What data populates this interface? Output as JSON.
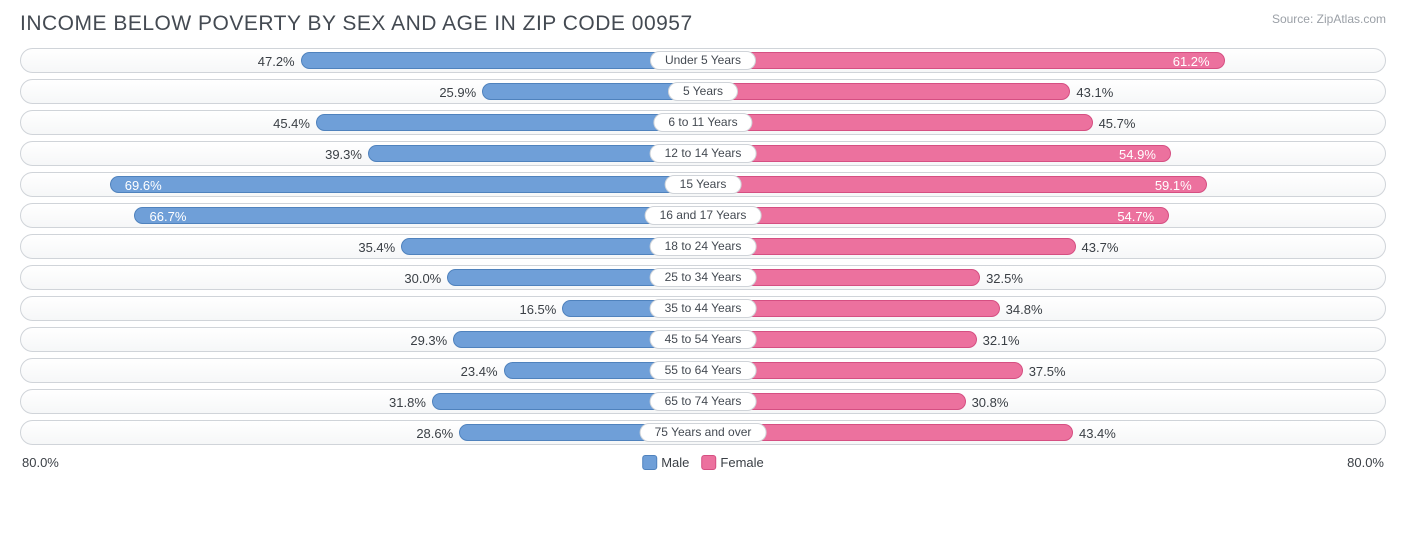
{
  "title": "INCOME BELOW POVERTY BY SEX AND AGE IN ZIP CODE 00957",
  "source": "Source: ZipAtlas.com",
  "axis_max_value": 80.0,
  "axis_max_label_left": "80.0%",
  "axis_max_label_right": "80.0%",
  "colors": {
    "male_fill": "#6f9fd8",
    "male_border": "#4f82bd",
    "female_fill": "#ec719e",
    "female_border": "#d54f82",
    "track_border": "#d0d4d9",
    "text": "#3a3f45",
    "title_text": "#444a52",
    "source_text": "#9ba0a7",
    "background": "#ffffff"
  },
  "legend": {
    "male": "Male",
    "female": "Female"
  },
  "label_inside_threshold": 50.0,
  "rows": [
    {
      "category": "Under 5 Years",
      "male": 47.2,
      "male_label": "47.2%",
      "female": 61.2,
      "female_label": "61.2%"
    },
    {
      "category": "5 Years",
      "male": 25.9,
      "male_label": "25.9%",
      "female": 43.1,
      "female_label": "43.1%"
    },
    {
      "category": "6 to 11 Years",
      "male": 45.4,
      "male_label": "45.4%",
      "female": 45.7,
      "female_label": "45.7%"
    },
    {
      "category": "12 to 14 Years",
      "male": 39.3,
      "male_label": "39.3%",
      "female": 54.9,
      "female_label": "54.9%"
    },
    {
      "category": "15 Years",
      "male": 69.6,
      "male_label": "69.6%",
      "female": 59.1,
      "female_label": "59.1%"
    },
    {
      "category": "16 and 17 Years",
      "male": 66.7,
      "male_label": "66.7%",
      "female": 54.7,
      "female_label": "54.7%"
    },
    {
      "category": "18 to 24 Years",
      "male": 35.4,
      "male_label": "35.4%",
      "female": 43.7,
      "female_label": "43.7%"
    },
    {
      "category": "25 to 34 Years",
      "male": 30.0,
      "male_label": "30.0%",
      "female": 32.5,
      "female_label": "32.5%"
    },
    {
      "category": "35 to 44 Years",
      "male": 16.5,
      "male_label": "16.5%",
      "female": 34.8,
      "female_label": "34.8%"
    },
    {
      "category": "45 to 54 Years",
      "male": 29.3,
      "male_label": "29.3%",
      "female": 32.1,
      "female_label": "32.1%"
    },
    {
      "category": "55 to 64 Years",
      "male": 23.4,
      "male_label": "23.4%",
      "female": 37.5,
      "female_label": "37.5%"
    },
    {
      "category": "65 to 74 Years",
      "male": 31.8,
      "male_label": "31.8%",
      "female": 30.8,
      "female_label": "30.8%"
    },
    {
      "category": "75 Years and over",
      "male": 28.6,
      "male_label": "28.6%",
      "female": 43.4,
      "female_label": "43.4%"
    }
  ]
}
